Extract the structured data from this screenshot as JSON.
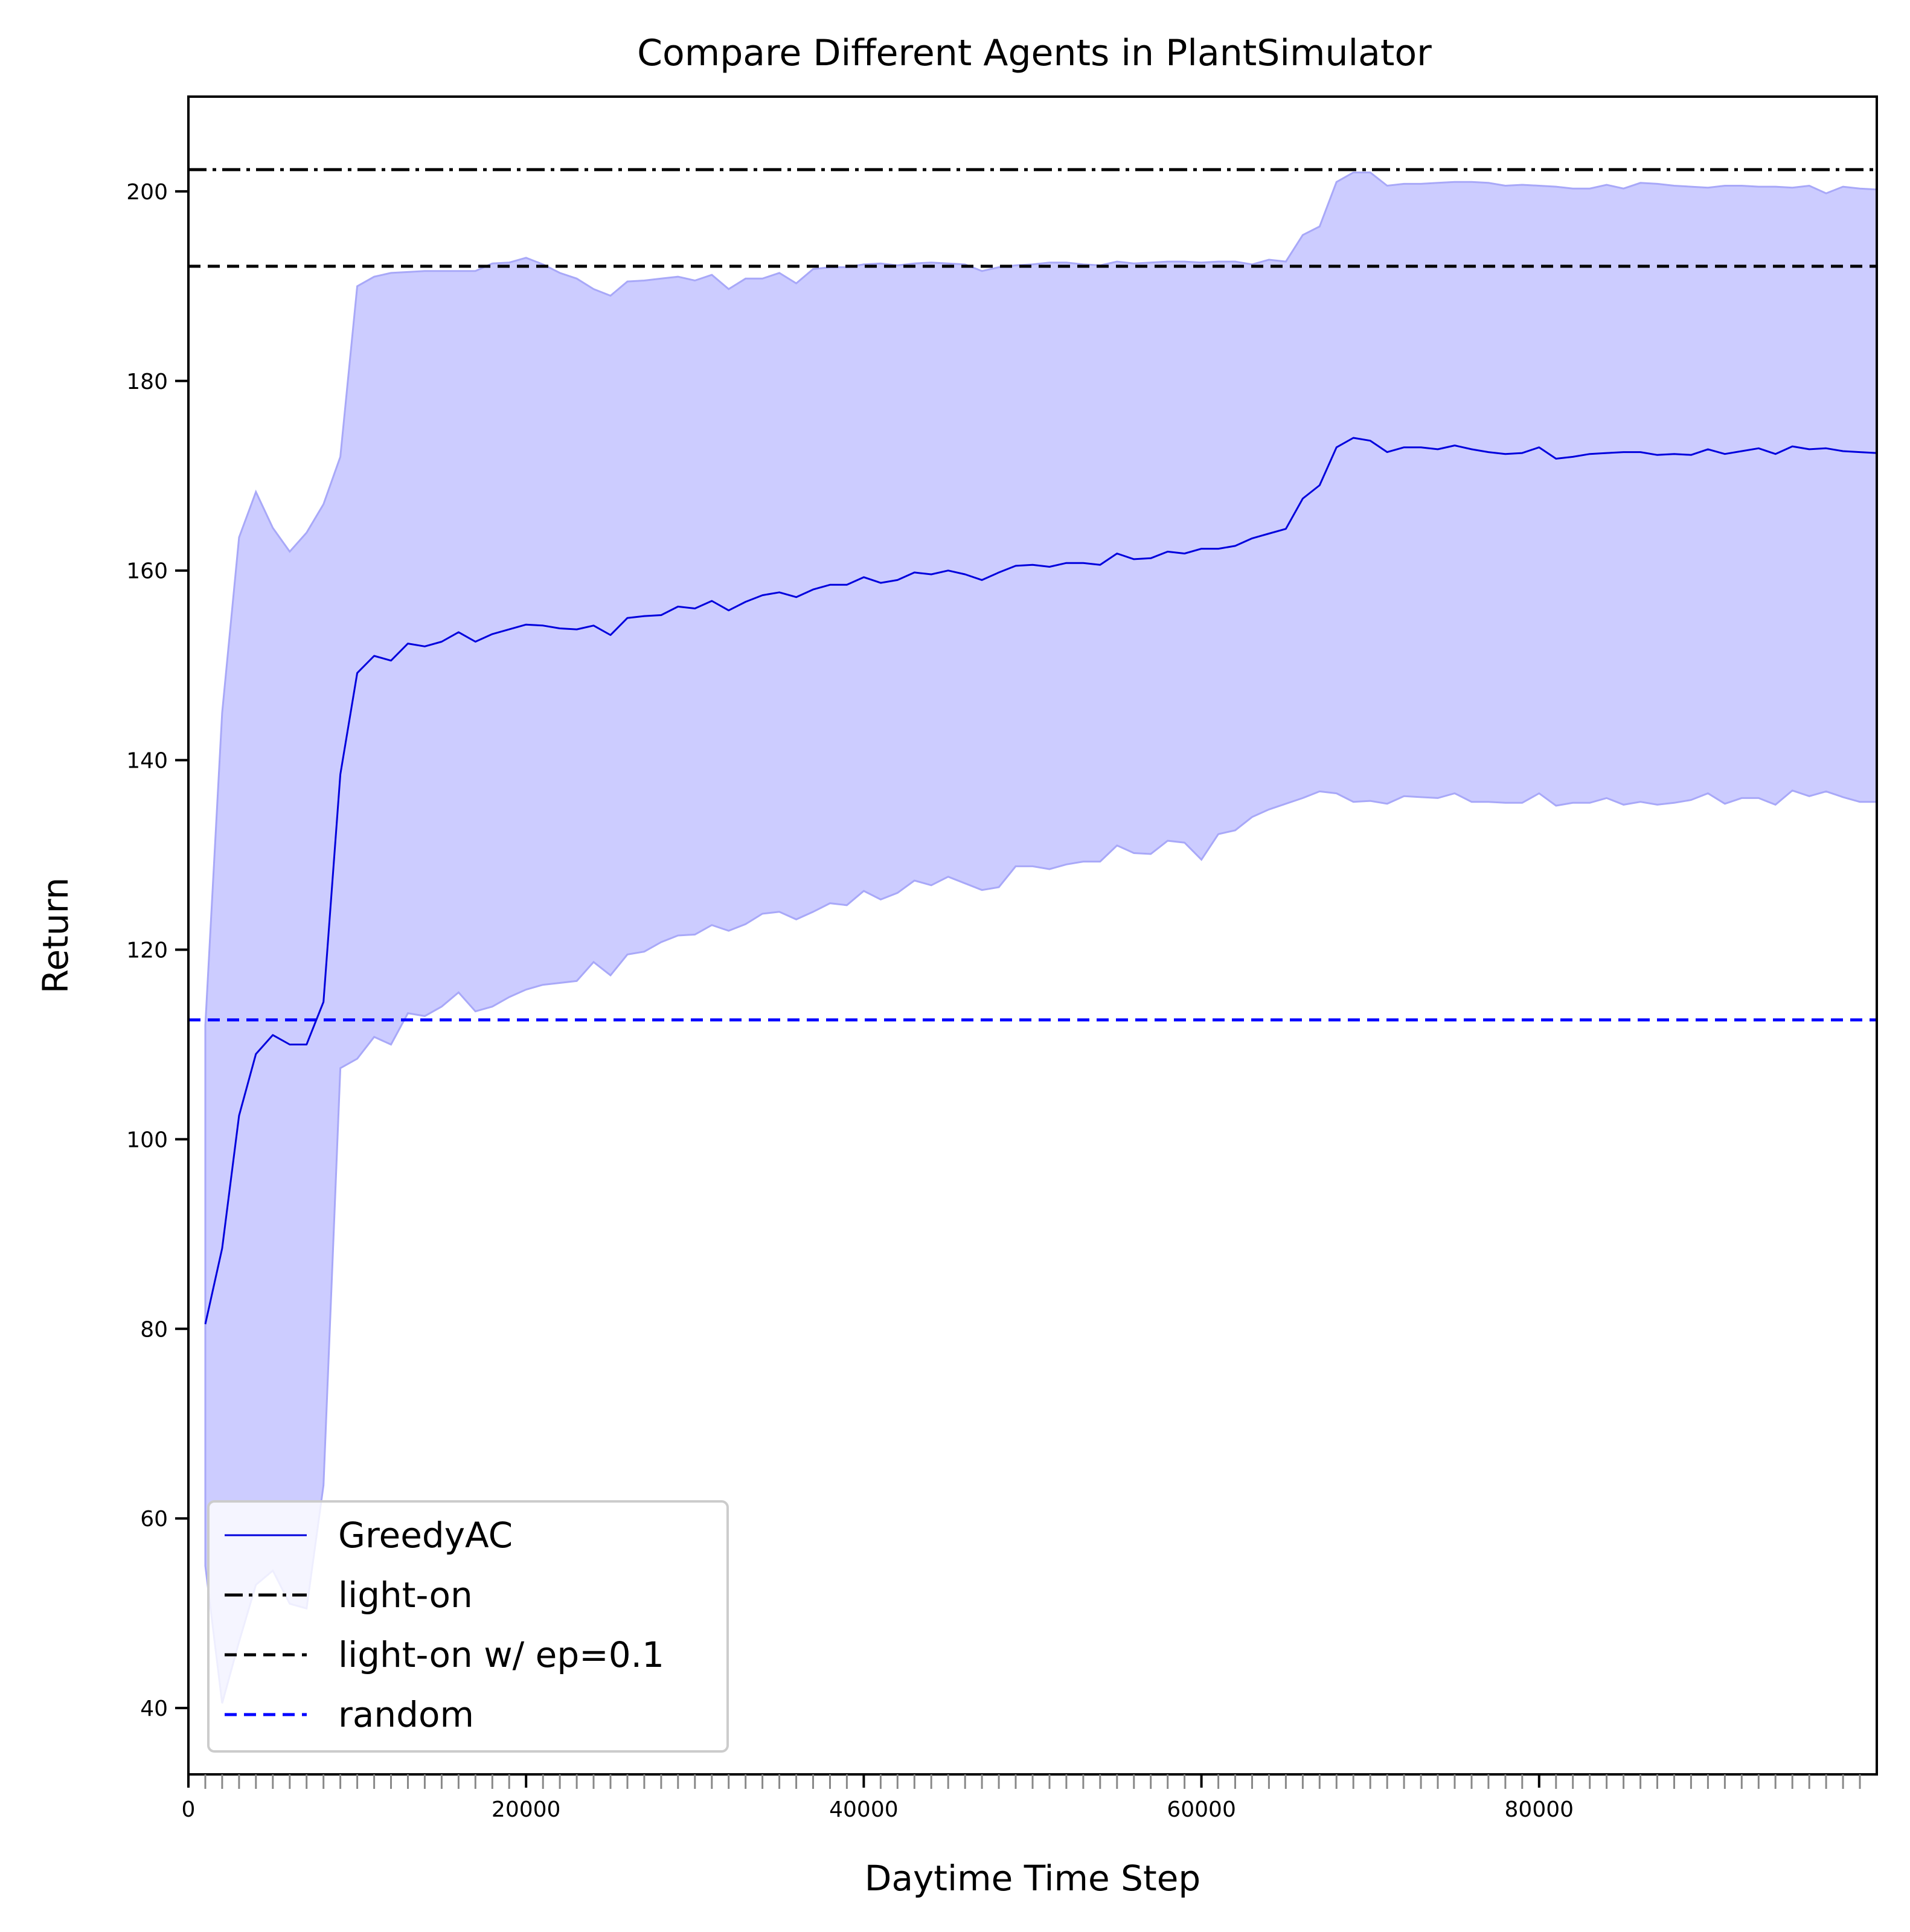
{
  "chart_data": {
    "type": "line",
    "title": "Compare Different Agents in PlantSimulator",
    "xlabel": "Daytime Time Step",
    "ylabel": "Return",
    "xlim": [
      0,
      100000
    ],
    "ylim": [
      33,
      210
    ],
    "x_ticks": [
      0,
      20000,
      40000,
      60000,
      80000
    ],
    "y_ticks": [
      40,
      60,
      80,
      100,
      120,
      140,
      160,
      180,
      200
    ],
    "minor_x_tick_step": 1000,
    "grid": false,
    "legend_position": "lower-left",
    "x": [
      1000,
      2000,
      3000,
      4000,
      5000,
      6000,
      7000,
      8000,
      9000,
      10000,
      11000,
      12000,
      13000,
      14000,
      15000,
      16000,
      17000,
      18000,
      19000,
      20000,
      21000,
      22000,
      23000,
      24000,
      25000,
      26000,
      27000,
      28000,
      29000,
      30000,
      31000,
      32000,
      33000,
      34000,
      35000,
      36000,
      37000,
      38000,
      39000,
      40000,
      41000,
      42000,
      43000,
      44000,
      45000,
      46000,
      47000,
      48000,
      49000,
      50000,
      51000,
      52000,
      53000,
      54000,
      55000,
      56000,
      57000,
      58000,
      59000,
      60000,
      61000,
      62000,
      63000,
      64000,
      65000,
      66000,
      67000,
      68000,
      69000,
      70000,
      71000,
      72000,
      73000,
      74000,
      75000,
      76000,
      77000,
      78000,
      79000,
      80000,
      81000,
      82000,
      83000,
      84000,
      85000,
      86000,
      87000,
      88000,
      89000,
      90000,
      91000,
      92000,
      93000,
      94000,
      95000,
      96000,
      97000,
      98000,
      99000,
      100000
    ],
    "series": [
      {
        "name": "GreedyAC",
        "style": "solid",
        "color": "#0000dd",
        "values": [
          80.5,
          88.5,
          102.5,
          109,
          111,
          110,
          110,
          114.5,
          138.5,
          149.2,
          151,
          150.5,
          152.3,
          152,
          152.5,
          153.5,
          152.5,
          153.3,
          153.8,
          154.3,
          154.2,
          153.9,
          153.8,
          154.2,
          153.2,
          155,
          155.2,
          155.3,
          156.2,
          156,
          156.8,
          155.8,
          156.7,
          157.4,
          157.7,
          157.2,
          158,
          158.5,
          158.5,
          159.3,
          158.7,
          159,
          159.8,
          159.6,
          160,
          159.6,
          159,
          159.8,
          160.5,
          160.6,
          160.4,
          160.8,
          160.8,
          160.6,
          161.8,
          161.2,
          161.3,
          162,
          161.8,
          162.3,
          162.3,
          162.6,
          163.4,
          163.9,
          164.4,
          167.6,
          169,
          173,
          174,
          173.7,
          172.5,
          173,
          173,
          172.8,
          173.2,
          172.8,
          172.5,
          172.3,
          172.4,
          173,
          171.8,
          172,
          172.3,
          172.4,
          172.5,
          172.5,
          172.2,
          172.3,
          172.2,
          172.8,
          172.3,
          172.6,
          172.9,
          172.3,
          173.1,
          172.8,
          172.9,
          172.6,
          172.5,
          172.4
        ],
        "band_upper": [
          112,
          145,
          163.5,
          168.3,
          164.5,
          162,
          164,
          167,
          172,
          190,
          191,
          191.4,
          191.5,
          191.6,
          191.6,
          191.6,
          191.6,
          192.4,
          192.5,
          193,
          192.3,
          191.4,
          190.8,
          189.7,
          189,
          190.5,
          190.6,
          190.8,
          191,
          190.6,
          191.2,
          189.7,
          190.8,
          190.8,
          191.4,
          190.3,
          191.8,
          192,
          192,
          192.3,
          192.4,
          192.2,
          192.4,
          192.5,
          192.4,
          192.3,
          191.6,
          192,
          192.2,
          192.3,
          192.5,
          192.5,
          192.3,
          192.2,
          192.6,
          192.4,
          192.5,
          192.6,
          192.6,
          192.5,
          192.6,
          192.6,
          192.3,
          192.8,
          192.6,
          195.4,
          196.3,
          201,
          202,
          202,
          200.6,
          200.8,
          200.8,
          200.9,
          201,
          201,
          200.9,
          200.6,
          200.7,
          200.6,
          200.5,
          200.3,
          200.3,
          200.7,
          200.3,
          200.9,
          200.8,
          200.6,
          200.5,
          200.4,
          200.6,
          200.6,
          200.5,
          200.5,
          200.4,
          200.6,
          199.8,
          200.5,
          200.3,
          200.2
        ],
        "band_lower": [
          55,
          40.5,
          47,
          53,
          54.5,
          51,
          50.5,
          63.5,
          107.5,
          108.5,
          110.8,
          110,
          113.3,
          113,
          114,
          115.5,
          113.5,
          114,
          115,
          115.8,
          116.3,
          116.5,
          116.7,
          118.7,
          117.3,
          119.5,
          119.8,
          120.8,
          121.5,
          121.6,
          122.6,
          122,
          122.7,
          123.8,
          124,
          123.2,
          124,
          124.9,
          124.7,
          126.2,
          125.3,
          126,
          127.3,
          126.8,
          127.7,
          127,
          126.3,
          126.6,
          128.8,
          128.8,
          128.5,
          129,
          129.3,
          129.3,
          131,
          130.2,
          130.1,
          131.5,
          131.3,
          129.5,
          132.2,
          132.6,
          134,
          134.8,
          135.4,
          136,
          136.7,
          136.5,
          135.6,
          135.7,
          135.4,
          136.2,
          136.1,
          136,
          136.5,
          135.6,
          135.6,
          135.5,
          135.5,
          136.5,
          135.2,
          135.5,
          135.5,
          136,
          135.3,
          135.6,
          135.3,
          135.5,
          135.8,
          136.5,
          135.4,
          136,
          136,
          135.3,
          136.8,
          136.2,
          136.7,
          136.1,
          135.6,
          135.6
        ]
      },
      {
        "name": "light-on",
        "style": "dashdot",
        "color": "#000000",
        "constant": 202.3
      },
      {
        "name": "light-on w/ ep=0.1",
        "style": "dashed",
        "color": "#000000",
        "constant": 192.1
      },
      {
        "name": "random",
        "style": "dashed",
        "color": "#0000ff",
        "constant": 112.6
      }
    ],
    "band_color": "#ccccff",
    "band_edge_color": "#a8a8f8"
  }
}
